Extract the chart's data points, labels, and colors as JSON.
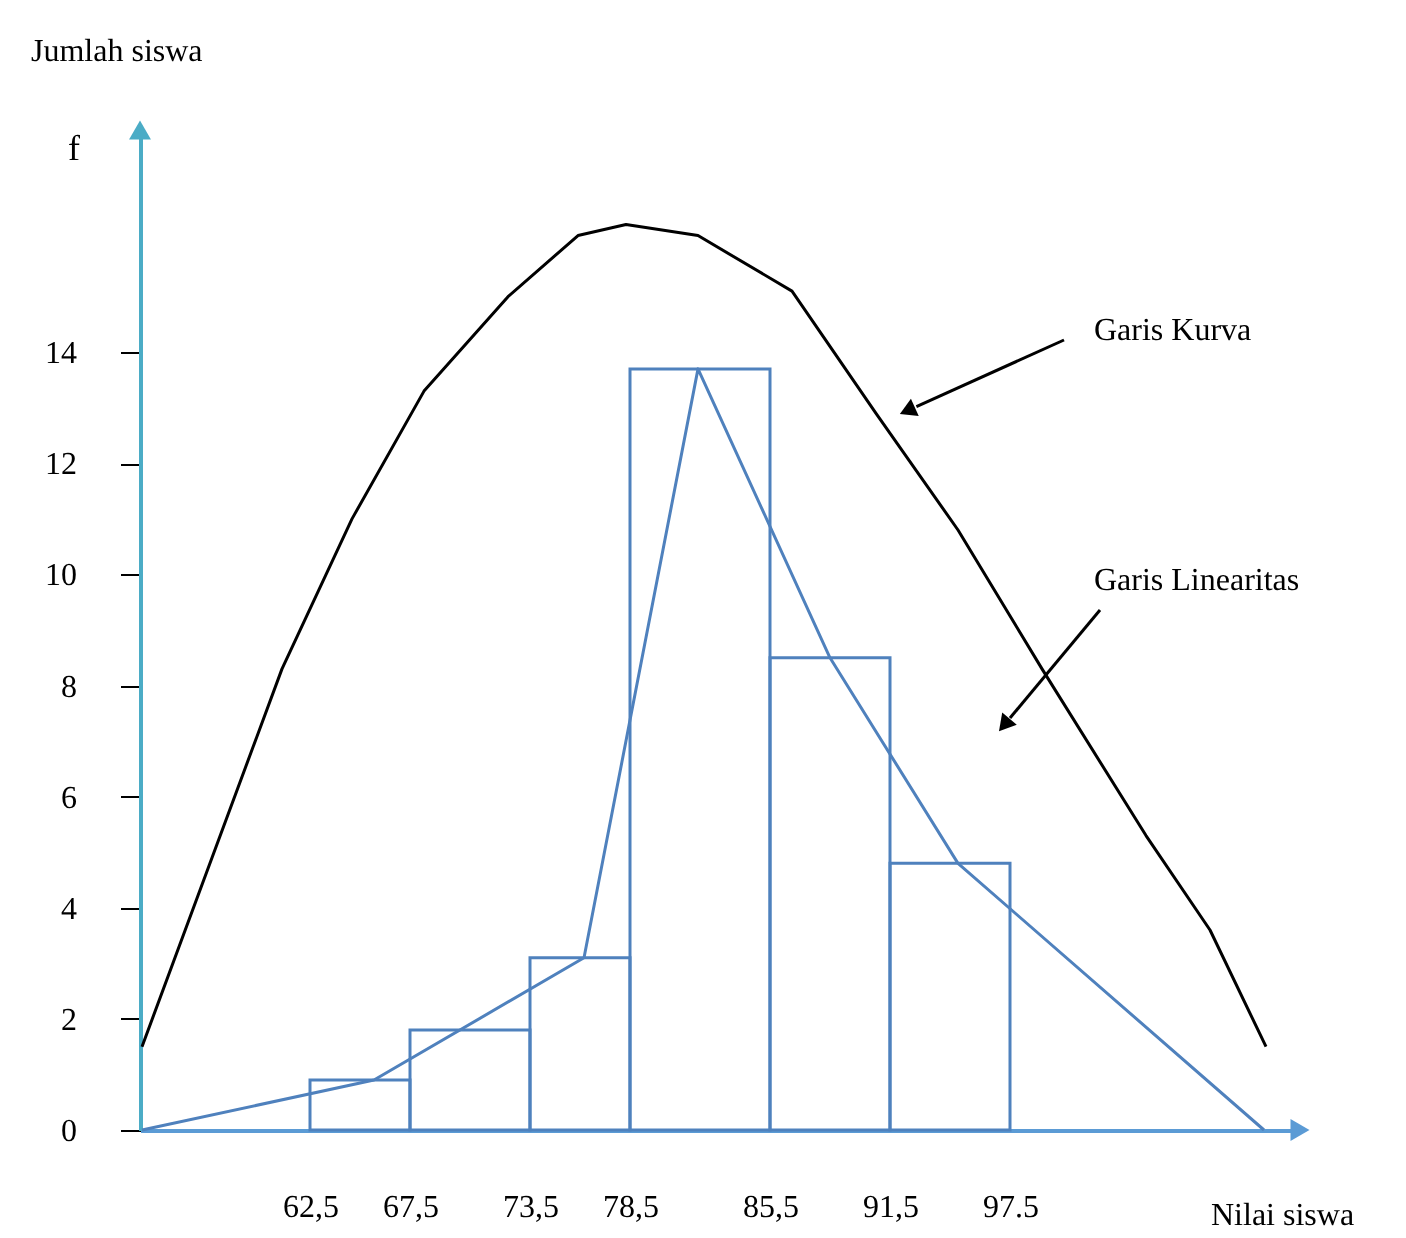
{
  "chart_data": {
    "type": "histogram",
    "xlabel": "Nilai siswa",
    "ylabel": "Jumlah siswa",
    "xlim": [
      54,
      112
    ],
    "ylim": [
      0,
      18
    ],
    "xticks": [
      {
        "value": 62.5,
        "label": "62,5"
      },
      {
        "value": 67.5,
        "label": "67,5"
      },
      {
        "value": 73.5,
        "label": "73,5"
      },
      {
        "value": 78.5,
        "label": "78,5"
      },
      {
        "value": 85.5,
        "label": "85,5"
      },
      {
        "value": 91.5,
        "label": "91,5"
      },
      {
        "value": 97.5,
        "label": "97.5"
      }
    ],
    "yticks": [
      0,
      2,
      4,
      6,
      8,
      10,
      12,
      14
    ],
    "series": [
      {
        "color": "#4f81bd",
        "bins": [
          62.5,
          67.5,
          73.5,
          78.5,
          85.5,
          91.5,
          97.5
        ],
        "values": [
          0.9,
          1.8,
          3.1,
          13.7,
          8.5,
          4.8
        ]
      },
      {
        "type": "line",
        "color": "#4f81bd",
        "x": [
          54.1,
          65.7,
          76.2,
          81.9,
          88.5,
          94.9,
          110.2
        ],
        "values": [
          0,
          0.9,
          3.1,
          13.7,
          8.5,
          4.8,
          0
        ]
      },
      {
        "type": "line",
        "color": "#000000",
        "x": [
          54.1,
          57.6,
          61.1,
          64.6,
          68.2,
          72.4,
          75.9,
          78.3,
          81.9,
          86.6,
          90.8,
          94.9,
          99.1,
          104.3,
          107.5,
          110.3
        ],
        "values": [
          1.5,
          4.9,
          8.3,
          11.0,
          13.3,
          15.0,
          16.1,
          16.3,
          16.1,
          15.1,
          12.9,
          10.8,
          8.3,
          5.3,
          3.6,
          1.5
        ]
      }
    ],
    "annotations": [
      "f",
      "Garis Kurva",
      "Garis Linearitas"
    ],
    "grid": false
  }
}
